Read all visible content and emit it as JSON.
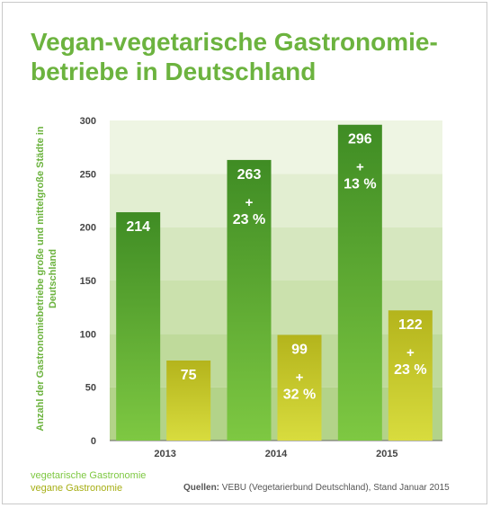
{
  "title_line1": "Vegan-vegetarische Gastronomie-",
  "title_line2": "betriebe in Deutschland",
  "colors": {
    "title": "#6cb33f",
    "vegetarian_light": "#7ec842",
    "vegetarian_dark": "#3f8c24",
    "vegan_light": "#d8dc3e",
    "vegan_dark": "#b4b41c",
    "band_dark": "#b3d389",
    "band_light": "#eef5e3",
    "legend_vegan": "#a6ae14",
    "axis": "#444444"
  },
  "legend": {
    "vegetarian": "vegetarische Gastronomie",
    "vegan": "vegane Gastronomie"
  },
  "source": {
    "label": "Quellen:",
    "text": "VEBU (Vegetarierbund Deutschland), Stand Januar 2015"
  },
  "chart_data": {
    "type": "bar",
    "title": "Vegan-vegetarische Gastronomiebetriebe in Deutschland",
    "ylabel": "Anzahl der Gastronomiebetriebe große und mittelgroße Städte in Deutschland",
    "xlabel": "",
    "ylim": [
      0,
      300
    ],
    "yticks": [
      "0",
      "50",
      "100",
      "150",
      "200",
      "250",
      "300"
    ],
    "categories": [
      "2013",
      "2014",
      "2015"
    ],
    "series": [
      {
        "name": "vegetarische Gastronomie",
        "values": [
          214,
          263,
          296
        ],
        "labels": [
          "214",
          "263",
          "296"
        ],
        "growth": [
          "",
          "+\n23 %",
          "+\n13 %"
        ]
      },
      {
        "name": "vegane Gastronomie",
        "values": [
          75,
          99,
          122
        ],
        "labels": [
          "75",
          "99",
          "122"
        ],
        "growth": [
          "",
          "+\n32 %",
          "+\n23 %"
        ]
      }
    ]
  }
}
